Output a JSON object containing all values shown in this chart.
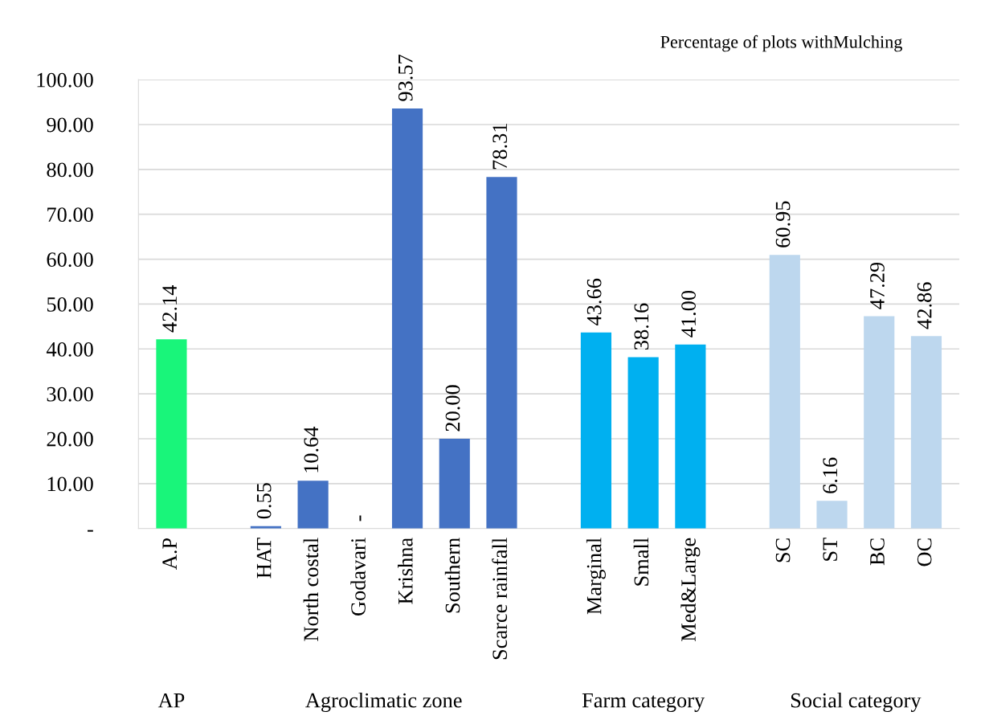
{
  "chart_data": {
    "type": "bar",
    "title": "Percentage of plots withMulching",
    "categories": [
      "A.P",
      null,
      "HAT",
      "North costal",
      "Godavari",
      "Krishna",
      "Southern",
      "Scarce rainfall",
      null,
      "Marginal",
      "Small",
      "Med&Large",
      null,
      "SC",
      "ST",
      "BC",
      "OC"
    ],
    "values": [
      42.14,
      null,
      0.55,
      10.64,
      0,
      93.57,
      20.0,
      78.31,
      null,
      43.66,
      38.16,
      41.0,
      null,
      60.95,
      6.16,
      47.29,
      42.86
    ],
    "colors": [
      "#19f57a",
      null,
      "#4472c4",
      "#4472c4",
      "#4472c4",
      "#4472c4",
      "#4472c4",
      "#4472c4",
      null,
      "#00b0f0",
      "#00b0f0",
      "#00b0f0",
      null,
      "#bdd7ee",
      "#bdd7ee",
      "#bdd7ee",
      "#bdd7ee"
    ],
    "value_labels": [
      "42.14",
      null,
      "0.55",
      "10.64",
      "-",
      "93.57",
      "20.00",
      "78.31",
      null,
      "43.66",
      "38.16",
      "41.00",
      null,
      "60.95",
      "6.16",
      "47.29",
      "42.86"
    ],
    "ylim": [
      0,
      100
    ],
    "yticks": [
      {
        "value": 0,
        "label": "-"
      },
      {
        "value": 10,
        "label": "10.00"
      },
      {
        "value": 20,
        "label": "20.00"
      },
      {
        "value": 30,
        "label": "30.00"
      },
      {
        "value": 40,
        "label": "40.00"
      },
      {
        "value": 50,
        "label": "50.00"
      },
      {
        "value": 60,
        "label": "60.00"
      },
      {
        "value": 70,
        "label": "70.00"
      },
      {
        "value": 80,
        "label": "80.00"
      },
      {
        "value": 90,
        "label": "90.00"
      },
      {
        "value": 100,
        "label": "100.00"
      }
    ],
    "grid": "y",
    "annotations": [
      "AP",
      "Agroclimatic zone",
      "Farm category",
      "Social category"
    ]
  }
}
